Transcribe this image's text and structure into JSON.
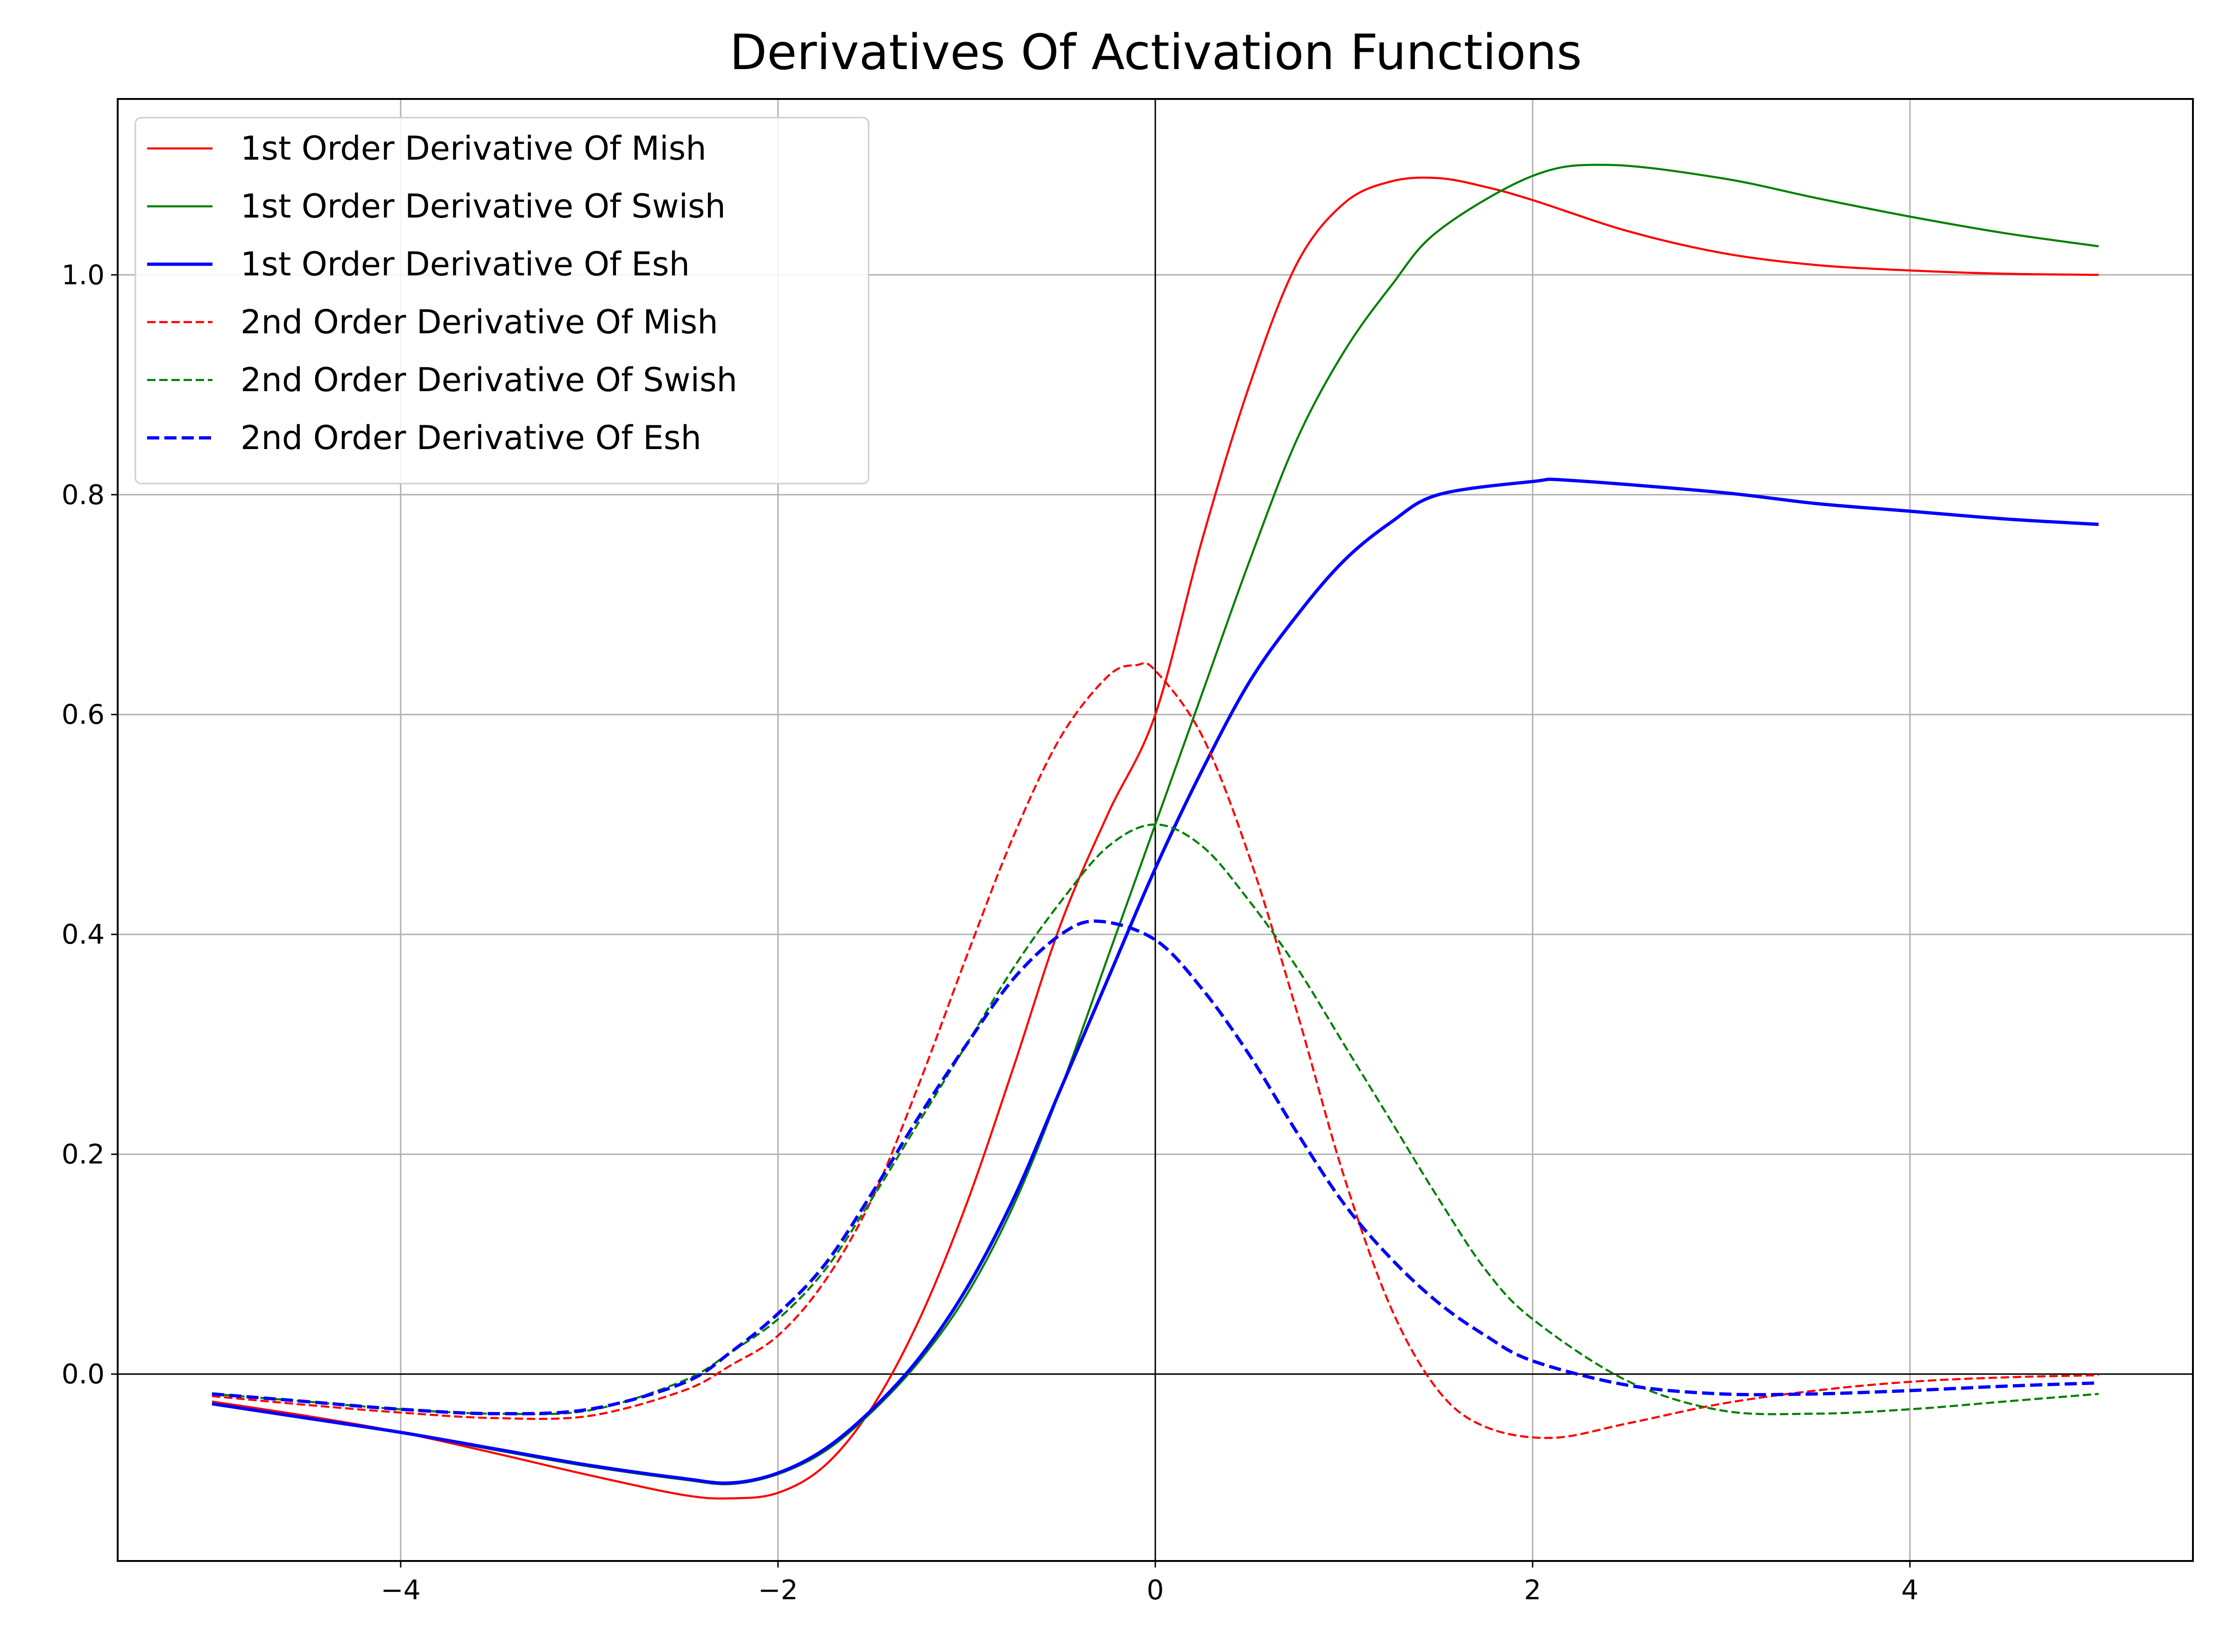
{
  "chart_data": {
    "type": "line",
    "title": "Derivatives Of Activation Functions",
    "xlabel": "",
    "ylabel": "",
    "xlim": [
      -5.5,
      5.5
    ],
    "ylim": [
      -0.17,
      1.16
    ],
    "xticks": [
      -4,
      -2,
      0,
      2,
      4
    ],
    "xtick_labels": [
      "−4",
      "−2",
      "0",
      "2",
      "4"
    ],
    "yticks": [
      0.0,
      0.2,
      0.4,
      0.6,
      0.8,
      1.0
    ],
    "ytick_labels": [
      "0.0",
      "0.2",
      "0.4",
      "0.6",
      "0.8",
      "1.0"
    ],
    "grid": true,
    "zero_lines": true,
    "legend_position": "top-left",
    "series": [
      {
        "name": "1st Order Derivative Of Mish",
        "color": "#ff0000",
        "style": "solid",
        "weight": "thin",
        "x": [
          -5,
          -4.5,
          -4,
          -3.5,
          -3,
          -2.5,
          -2.25,
          -2,
          -1.75,
          -1.5,
          -1.25,
          -1,
          -0.75,
          -0.5,
          -0.25,
          0,
          0.25,
          0.5,
          0.75,
          1,
          1.25,
          1.5,
          1.75,
          2,
          2.5,
          3,
          3.5,
          4,
          4.5,
          5
        ],
        "y": [
          -0.025,
          -0.038,
          -0.053,
          -0.072,
          -0.092,
          -0.11,
          -0.113,
          -0.108,
          -0.083,
          -0.03,
          0.05,
          0.155,
          0.28,
          0.41,
          0.51,
          0.6,
          0.76,
          0.9,
          1.01,
          1.065,
          1.085,
          1.088,
          1.08,
          1.068,
          1.04,
          1.02,
          1.009,
          1.004,
          1.001,
          1.0
        ]
      },
      {
        "name": "1st Order Derivative Of Swish",
        "color": "#008000",
        "style": "solid",
        "weight": "thin",
        "x": [
          -5,
          -4.5,
          -4,
          -3.5,
          -3,
          -2.5,
          -2.25,
          -2,
          -1.75,
          -1.5,
          -1.25,
          -1,
          -0.75,
          -0.5,
          -0.25,
          0,
          0.25,
          0.5,
          0.75,
          1,
          1.25,
          1.5,
          2,
          2.4,
          3,
          3.5,
          4,
          4.5,
          5
        ],
        "y": [
          -0.027,
          -0.04,
          -0.053,
          -0.069,
          -0.084,
          -0.096,
          -0.1,
          -0.091,
          -0.07,
          -0.034,
          0.012,
          0.072,
          0.154,
          0.26,
          0.38,
          0.5,
          0.62,
          0.74,
          0.85,
          0.93,
          0.99,
          1.04,
          1.09,
          1.1,
          1.088,
          1.07,
          1.053,
          1.038,
          1.026
        ]
      },
      {
        "name": "1st Order Derivative Of Esh",
        "color": "#0000ff",
        "style": "solid",
        "weight": "thick",
        "x": [
          -5,
          -4.5,
          -4,
          -3.5,
          -3,
          -2.5,
          -2.25,
          -2,
          -1.75,
          -1.5,
          -1.25,
          -1,
          -0.75,
          -0.5,
          -0.25,
          0,
          0.25,
          0.5,
          0.75,
          1,
          1.25,
          1.5,
          2,
          2.2,
          3,
          3.5,
          4,
          4.5,
          5
        ],
        "y": [
          -0.027,
          -0.04,
          -0.053,
          -0.068,
          -0.083,
          -0.095,
          -0.099,
          -0.09,
          -0.068,
          -0.032,
          0.015,
          0.078,
          0.16,
          0.26,
          0.36,
          0.46,
          0.55,
          0.63,
          0.69,
          0.74,
          0.775,
          0.8,
          0.812,
          0.813,
          0.802,
          0.792,
          0.785,
          0.778,
          0.773
        ]
      },
      {
        "name": "2nd Order Derivative Of Mish",
        "color": "#ff0000",
        "style": "dashed",
        "weight": "thin",
        "x": [
          -5,
          -4.5,
          -4,
          -3.5,
          -3,
          -2.5,
          -2.25,
          -2,
          -1.75,
          -1.5,
          -1.25,
          -1,
          -0.75,
          -0.5,
          -0.25,
          -0.1,
          0,
          0.25,
          0.5,
          0.75,
          1,
          1.25,
          1.5,
          1.75,
          2.1,
          2.5,
          3,
          3.5,
          4,
          4.5,
          5
        ],
        "y": [
          -0.02,
          -0.028,
          -0.035,
          -0.04,
          -0.038,
          -0.015,
          0.008,
          0.035,
          0.085,
          0.16,
          0.265,
          0.38,
          0.49,
          0.58,
          0.635,
          0.645,
          0.64,
          0.58,
          0.47,
          0.33,
          0.18,
          0.06,
          -0.015,
          -0.048,
          -0.058,
          -0.045,
          -0.027,
          -0.015,
          -0.007,
          -0.003,
          -0.001
        ]
      },
      {
        "name": "2nd Order Derivative Of Swish",
        "color": "#008000",
        "style": "dashed",
        "weight": "thin",
        "x": [
          -5,
          -4.5,
          -4,
          -3.5,
          -3,
          -2.5,
          -2.25,
          -2,
          -1.75,
          -1.5,
          -1.25,
          -1,
          -0.75,
          -0.5,
          -0.25,
          0,
          0.25,
          0.5,
          0.75,
          1,
          1.25,
          1.5,
          1.75,
          2,
          2.5,
          3,
          3.5,
          4,
          4.5,
          5
        ],
        "y": [
          -0.018,
          -0.025,
          -0.032,
          -0.036,
          -0.033,
          -0.006,
          0.02,
          0.05,
          0.095,
          0.16,
          0.23,
          0.3,
          0.37,
          0.43,
          0.48,
          0.5,
          0.48,
          0.43,
          0.37,
          0.3,
          0.23,
          0.16,
          0.095,
          0.05,
          -0.006,
          -0.033,
          -0.036,
          -0.032,
          -0.025,
          -0.018
        ]
      },
      {
        "name": "2nd Order Derivative Of Esh",
        "color": "#0000ff",
        "style": "dashed",
        "weight": "thick",
        "x": [
          -5,
          -4.5,
          -4,
          -3.5,
          -3,
          -2.5,
          -2.25,
          -2,
          -1.75,
          -1.5,
          -1.25,
          -1,
          -0.75,
          -0.5,
          -0.3,
          0,
          0.25,
          0.5,
          0.75,
          1,
          1.25,
          1.5,
          1.75,
          2,
          2.5,
          3,
          3.5,
          4,
          4.5,
          5
        ],
        "y": [
          -0.018,
          -0.025,
          -0.032,
          -0.036,
          -0.032,
          -0.008,
          0.02,
          0.055,
          0.1,
          0.165,
          0.235,
          0.3,
          0.36,
          0.4,
          0.412,
          0.395,
          0.35,
          0.29,
          0.22,
          0.155,
          0.105,
          0.065,
          0.035,
          0.012,
          -0.01,
          -0.018,
          -0.018,
          -0.015,
          -0.011,
          -0.008
        ]
      }
    ]
  }
}
